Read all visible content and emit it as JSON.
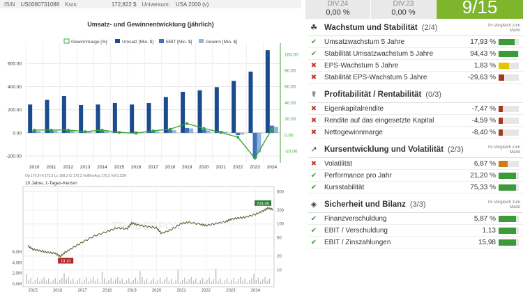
{
  "infobar": {
    "isin_label": "ISIN",
    "isin": "US0080731088",
    "kurs_label": "Kurs:",
    "kurs": "172,822 $",
    "universum_label": "Universum:",
    "universum": "USA 2000 (v)"
  },
  "dividends": [
    {
      "label": "DIV.24",
      "value": "0,00 %"
    },
    {
      "label": "DIV.23",
      "value": "0,00 %"
    }
  ],
  "score": "9/15",
  "colors": {
    "green": "#3a9b38",
    "red": "#c0392b",
    "yellow": "#e0c800",
    "orange": "#d07a18",
    "darkred": "#a23b1a",
    "umsatz": "#1a4b8c",
    "ebit": "#3d72b8",
    "gewinn": "#8fb4dd",
    "marge": "#3aa535"
  },
  "chart_data": [
    {
      "type": "bar",
      "title": "Umsatz- und Gewinnentwicklung (jährlich)",
      "legend": [
        "Gewinnmarge [%]",
        "Umsatz [Mio. $]",
        "EBIT [Mio. $]",
        "Gewinn [Mio. $]"
      ],
      "categories": [
        "2010",
        "2011",
        "2012",
        "2013",
        "2014",
        "2015",
        "2016",
        "2017",
        "2018",
        "2019",
        "2020",
        "2021",
        "2022",
        "2023",
        "2024"
      ],
      "series": [
        {
          "name": "Umsatz [Mio. $]",
          "values": [
            245,
            285,
            318,
            240,
            245,
            258,
            245,
            258,
            310,
            355,
            368,
            395,
            450,
            530,
            715
          ]
        },
        {
          "name": "EBIT [Mio. $]",
          "values": [
            20,
            25,
            28,
            12,
            18,
            12,
            10,
            18,
            28,
            42,
            28,
            15,
            -20,
            -220,
            62
          ]
        },
        {
          "name": "Gewinn [Mio. $]",
          "values": [
            15,
            18,
            20,
            10,
            14,
            8,
            6,
            12,
            22,
            38,
            20,
            10,
            -15,
            -170,
            52
          ]
        },
        {
          "name": "Gewinnmarge [%]",
          "axis": "right",
          "values": [
            6,
            6,
            6,
            4,
            6,
            3,
            2,
            5,
            7,
            14,
            8,
            3,
            -3,
            -29,
            7
          ]
        }
      ],
      "left_axis": {
        "ticks": [
          "600.00",
          "400.00",
          "200.00",
          "0.00",
          "-200.00"
        ],
        "range": [
          -260,
          740
        ]
      },
      "right_axis": {
        "ticks": [
          "100.00",
          "80.00",
          "60.00",
          "40.00",
          "20.00",
          "0.00",
          "-20.00"
        ],
        "range": [
          -34.7,
          108.5
        ]
      }
    },
    {
      "type": "line",
      "title": "10 Jahre, 1-Tages-Kerzen",
      "header": "Op 170,9  Hi 173,2  Lo 168,3  Cl 170,3    VolMovAvg 170,3    Vol 0,23M",
      "watermark": "TRADERFOX",
      "x_labels": [
        "2015",
        "2016",
        "2017",
        "2018",
        "2019",
        "2020",
        "2021",
        "2022",
        "2023",
        "2024"
      ],
      "right_ticks": [
        "500",
        "200",
        "100",
        "50",
        "20",
        "10"
      ],
      "vol_ticks": [
        "6,0M",
        "4,0M",
        "2,0M",
        "0,0M"
      ],
      "scale": "log",
      "y_range": [
        7,
        650
      ],
      "low_label": "19,10",
      "high_label": "224,00",
      "x": [
        2014.8,
        2015.0,
        2015.3,
        2015.6,
        2015.9,
        2016.1,
        2016.3,
        2016.6,
        2017.0,
        2017.5,
        2018.0,
        2018.4,
        2018.8,
        2019.0,
        2019.2,
        2019.6,
        2020.0,
        2020.2,
        2020.6,
        2021.0,
        2021.3,
        2021.8,
        2022.0,
        2022.4,
        2022.8,
        2023.0,
        2023.3,
        2023.6,
        2024.0,
        2024.3,
        2024.5,
        2024.7
      ],
      "y": [
        33,
        28,
        26,
        24,
        23,
        19.5,
        24,
        30,
        40,
        55,
        68,
        82,
        78,
        105,
        96,
        88,
        82,
        62,
        75,
        102,
        108,
        98,
        92,
        102,
        112,
        126,
        134,
        140,
        162,
        190,
        222,
        205
      ]
    }
  ],
  "sections": [
    {
      "icon": "sprout-icon",
      "title": "Wachstum und Stabilität",
      "count": "(2/4)",
      "compare": "Im Vergleich zum Markt",
      "rows": [
        {
          "ok": true,
          "name": "Umsatzwachstum 5 Jahre",
          "value": "17,93 %",
          "level": 0.8,
          "color": "#3a9b38"
        },
        {
          "ok": true,
          "name": "Stabilität Umsatzwachstum 5 Jahre",
          "value": "94,43 %",
          "level": 0.95,
          "color": "#3a9b38"
        },
        {
          "ok": false,
          "name": "EPS-Wachstum 5 Jahre",
          "value": "1,83 %",
          "level": 0.5,
          "color": "#e0c800"
        },
        {
          "ok": false,
          "name": "Stabilität EPS-Wachstum 5 Jahre",
          "value": "-29,63 %",
          "level": 0.28,
          "color": "#a23b1a"
        }
      ]
    },
    {
      "icon": "handshake-icon",
      "title": "Profitabilität / Rentabilität",
      "count": "(0/3)",
      "compare": "",
      "rows": [
        {
          "ok": false,
          "name": "Eigenkapitalrendite",
          "value": "-7,47 %",
          "level": 0.22,
          "color": "#a23b1a"
        },
        {
          "ok": false,
          "name": "Rendite auf das eingesetzte Kapital",
          "value": "-4,59 %",
          "level": 0.22,
          "color": "#a23b1a"
        },
        {
          "ok": false,
          "name": "Nettogewinnmarge",
          "value": "-8,40 %",
          "level": 0.22,
          "color": "#a23b1a"
        }
      ]
    },
    {
      "icon": "trend-chart-icon",
      "title": "Kursentwicklung und Volatilität",
      "count": "(2/3)",
      "compare": "Im Vergleich zum Markt",
      "rows": [
        {
          "ok": false,
          "name": "Volatilität",
          "value": "6,87 %",
          "level": 0.45,
          "color": "#d07a18"
        },
        {
          "ok": true,
          "name": "Performance pro Jahr",
          "value": "21,20 %",
          "level": 0.85,
          "color": "#3a9b38"
        },
        {
          "ok": true,
          "name": "Kursstabilität",
          "value": "75,33 %",
          "level": 0.85,
          "color": "#3a9b38"
        }
      ]
    },
    {
      "icon": "shield-icon",
      "title": "Sicherheit und Bilanz",
      "count": "(3/3)",
      "compare": "Im Vergleich zum Markt",
      "rows": [
        {
          "ok": true,
          "name": "Finanzverschuldung",
          "value": "5,87 %",
          "level": 0.85,
          "color": "#3a9b38"
        },
        {
          "ok": true,
          "name": "EBIT / Verschuldung",
          "value": "1,13",
          "level": 0.85,
          "color": "#3a9b38"
        },
        {
          "ok": true,
          "name": "EBIT / Zinszahlungen",
          "value": "15,98",
          "level": 0.85,
          "color": "#3a9b38"
        }
      ]
    }
  ]
}
